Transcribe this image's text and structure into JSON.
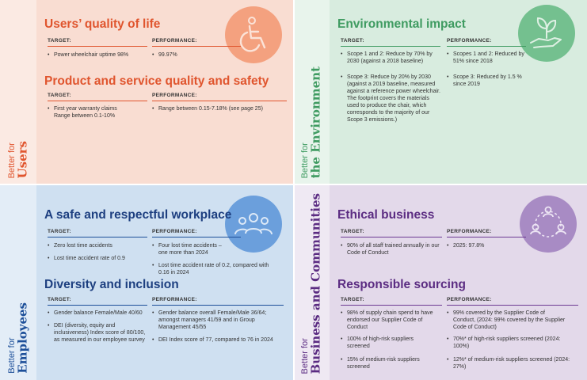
{
  "users": {
    "side_small": "Better for",
    "side_big": "Users",
    "icon": "wheelchair-icon",
    "color": "#e0552e",
    "sections": [
      {
        "title": "Users’ quality of life",
        "target_label": "TARGET:",
        "performance_label": "PERFORMANCE:",
        "targets": [
          "Power wheelchair uptime 98%"
        ],
        "performance": [
          "99.97%"
        ]
      },
      {
        "title": "Product and service quality and safety",
        "target_label": "TARGET:",
        "performance_label": "PERFORMANCE:",
        "targets": [
          "First year warranty claims Range between 0.1-10%"
        ],
        "performance": [
          "Range between 0.15-7.18% (see page 25)"
        ]
      }
    ]
  },
  "environment": {
    "side_small": "Better for",
    "side_big": "the Environment",
    "icon": "plant-in-hand-icon",
    "color": "#3f9b61",
    "sections": [
      {
        "title": "Environmental impact",
        "target_label": "TARGET:",
        "performance_label": "PERFORMANCE:",
        "targets": [
          "Scope 1 and 2: Reduce by 70% by 2030 (against a 2018 baseline)",
          "Scope 3: Reduce by 20% by 2030 (against a 2019 baseline, measured against a reference power wheelchair. The footprint covers the materials used to produce the chair, which corresponds to the majority of our Scope 3 emissions.)"
        ],
        "performance": [
          "Scopes 1 and 2: Reduced by 51% since 2018",
          "Scope 3: Reduced by 1.5 % since 2019"
        ]
      }
    ]
  },
  "employees": {
    "side_small": "Better for",
    "side_big": "Employees",
    "icon": "people-group-icon",
    "color": "#1d4f99",
    "sections": [
      {
        "title": "A safe and respectful workplace",
        "target_label": "TARGET:",
        "performance_label": "PERFORMANCE:",
        "targets": [
          "Zero lost time accidents",
          "Lost time accident rate of 0.9"
        ],
        "performance": [
          "Four lost time accidents – one more than 2024",
          "Lost time accident rate of 0.2, compared with 0.16 in 2024"
        ]
      },
      {
        "title": "Diversity and inclusion",
        "target_label": "TARGET:",
        "performance_label": "PERFORMANCE:",
        "targets": [
          "Gender balance Female/Male 40/60",
          "DEI (diversity, equity and inclusiveness) Index score of 80/100, as measured in our employee survey"
        ],
        "performance": [
          "Gender balance overall Female/Male 36/64; amongst managers 41/59 and in Group Management 45/55",
          "DEI Index score of 77, compared to 76 in 2024"
        ]
      }
    ]
  },
  "business": {
    "side_small": "Better for",
    "side_big": "Business and Communities",
    "icon": "community-circle-icon",
    "color": "#5b2c82",
    "sections": [
      {
        "title": "Ethical business",
        "target_label": "TARGET:",
        "performance_label": "PERFORMANCE:",
        "targets": [
          "90% of all staff trained annually in our Code of Conduct"
        ],
        "performance": [
          "2025: 97.8%"
        ]
      },
      {
        "title": "Responsible sourcing",
        "target_label": "TARGET:",
        "performance_label": "PERFORMANCE:",
        "targets": [
          "98% of supply chain spend to have endorsed our Supplier Code of Conduct",
          "100% of high-risk suppliers screened",
          "15% of medium-risk suppliers screened"
        ],
        "performance": [
          "99% covered by the Supplier Code of Conduct, (2024: 99% covered by the Supplier Code of Conduct)",
          "70%* of high-risk suppliers screened (2024: 100%)",
          "12%* of medium-risk suppliers screened (2024: 27%)"
        ]
      }
    ]
  }
}
